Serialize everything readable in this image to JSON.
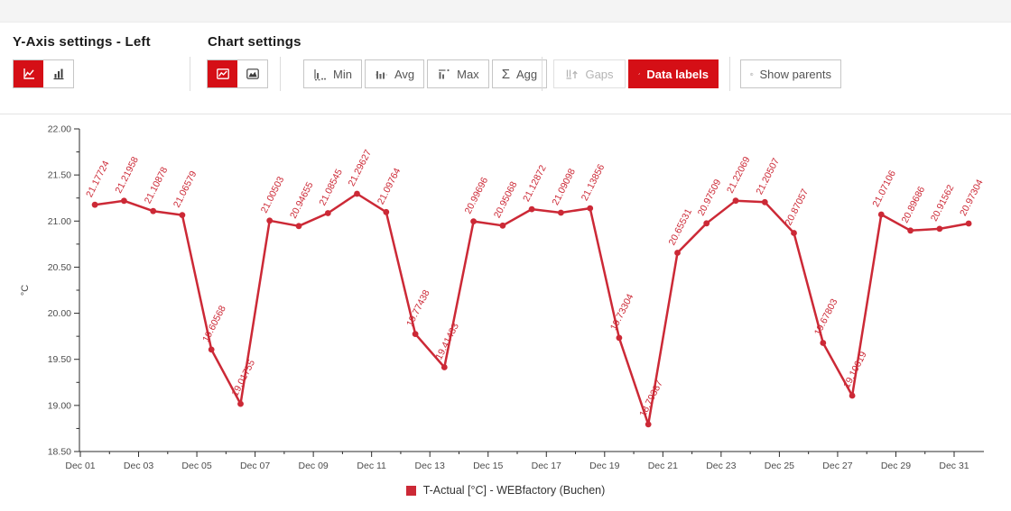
{
  "header": {
    "left_title": "Y-Axis settings - Left",
    "right_title": "Chart settings"
  },
  "toolbar": {
    "yaxis_line_icon": "line-chart-icon",
    "yaxis_bar_icon": "bar-chart-icon",
    "chart_line_icon": "line-chart-icon",
    "chart_area_icon": "area-chart-icon",
    "agg_buttons": [
      {
        "label": "Min",
        "icon": "min-icon"
      },
      {
        "label": "Avg",
        "icon": "avg-icon"
      },
      {
        "label": "Max",
        "icon": "max-icon"
      },
      {
        "label": "Agg",
        "icon": "sigma-icon"
      }
    ],
    "gaps_label": "Gaps",
    "data_labels_label": "Data labels",
    "show_parents_label": "Show parents",
    "sigma_glyph": "Σ"
  },
  "colors": {
    "accent_red": "#d50f16",
    "series_red": "#cc2936",
    "axis": "#2b2b2b",
    "tick_text": "#4d4d4d"
  },
  "chart_data": {
    "type": "line",
    "title": "",
    "xlabel": "",
    "ylabel": "°C",
    "ylim": [
      18.5,
      22.0
    ],
    "y_tick_step": 0.5,
    "y_minor_step": 0.25,
    "grid": false,
    "legend_position": "bottom",
    "data_labels_shown": true,
    "x_tick_labels": [
      "Dec 01",
      "Dec 03",
      "Dec 05",
      "Dec 07",
      "Dec 09",
      "Dec 11",
      "Dec 13",
      "Dec 15",
      "Dec 17",
      "Dec 19",
      "Dec 21",
      "Dec 23",
      "Dec 25",
      "Dec 27",
      "Dec 29",
      "Dec 31"
    ],
    "categories": [
      "Dec 01",
      "Dec 02",
      "Dec 03",
      "Dec 04",
      "Dec 05",
      "Dec 06",
      "Dec 07",
      "Dec 08",
      "Dec 09",
      "Dec 10",
      "Dec 11",
      "Dec 12",
      "Dec 13",
      "Dec 14",
      "Dec 15",
      "Dec 16",
      "Dec 17",
      "Dec 18",
      "Dec 19",
      "Dec 20",
      "Dec 21",
      "Dec 22",
      "Dec 23",
      "Dec 24",
      "Dec 25",
      "Dec 26",
      "Dec 27",
      "Dec 28",
      "Dec 29",
      "Dec 30",
      "Dec 31"
    ],
    "series": [
      {
        "name": "T-Actual [°C] - WEBfactory (Buchen)",
        "color": "#cc2936",
        "values": [
          21.17724,
          21.21958,
          21.10878,
          21.06579,
          19.60568,
          19.01755,
          21.00503,
          20.94655,
          21.08545,
          21.29627,
          21.09764,
          19.77438,
          19.41433,
          20.99696,
          20.95068,
          21.12872,
          21.09098,
          21.13856,
          19.73304,
          18.79387,
          20.65531,
          20.97509,
          21.22069,
          21.20507,
          20.87057,
          19.67803,
          19.10619,
          21.07106,
          20.89686,
          20.91562,
          20.97304
        ]
      }
    ]
  },
  "legend": {
    "label": "T-Actual [°C] - WEBfactory (Buchen)"
  }
}
